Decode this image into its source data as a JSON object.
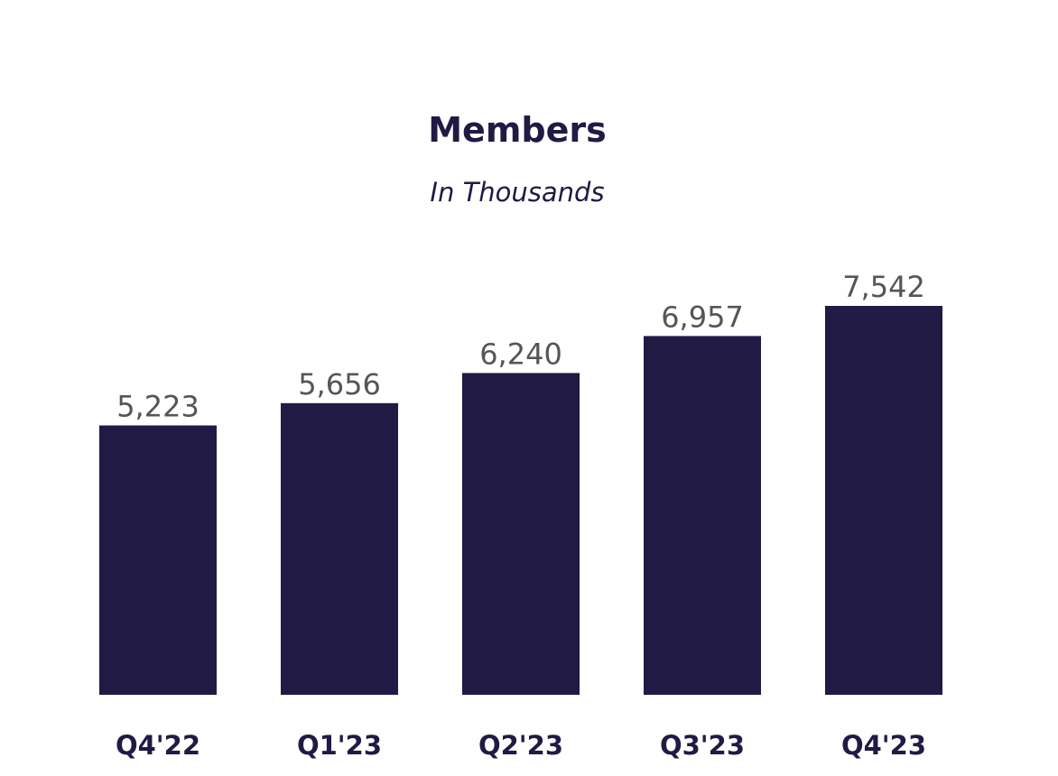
{
  "colors": {
    "bar": "#201a45",
    "title": "#201a45",
    "value_label": "#555555",
    "background": "#ffffff"
  },
  "chart_data": {
    "type": "bar",
    "title": "Members",
    "subtitle": "In Thousands",
    "categories": [
      "Q4'22",
      "Q1'23",
      "Q2'23",
      "Q3'23",
      "Q4'23"
    ],
    "values": [
      5223,
      5656,
      6240,
      6957,
      7542
    ],
    "value_labels": [
      "5,223",
      "5,656",
      "6,240",
      "6,957",
      "7,542"
    ],
    "ylim": [
      0,
      7542
    ],
    "grid": false,
    "legend": "none"
  }
}
